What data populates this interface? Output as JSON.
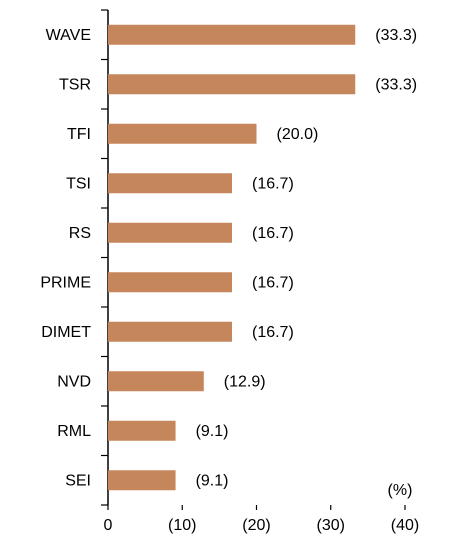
{
  "chart_data": {
    "type": "bar",
    "orientation": "horizontal",
    "categories": [
      "WAVE",
      "TSR",
      "TFI",
      "TSI",
      "RS",
      "PRIME",
      "DIMET",
      "NVD",
      "RML",
      "SEI"
    ],
    "values": [
      33.3,
      33.3,
      20.0,
      16.7,
      16.7,
      16.7,
      16.7,
      12.9,
      9.1,
      9.1
    ],
    "value_labels": [
      "(33.3)",
      "(33.3)",
      "(20.0)",
      "(16.7)",
      "(16.7)",
      "(16.7)",
      "(16.7)",
      "(12.9)",
      "(9.1)",
      "(9.1)"
    ],
    "color": "#c5865c",
    "xlim": [
      0,
      40
    ],
    "xticks": [
      0,
      {
        "value": 10,
        "label": "(10)"
      },
      {
        "value": 20,
        "label": "(20)"
      },
      {
        "value": 30,
        "label": "(30)"
      },
      {
        "value": 40,
        "label": "(40)"
      }
    ],
    "unit_label": "(%)"
  }
}
